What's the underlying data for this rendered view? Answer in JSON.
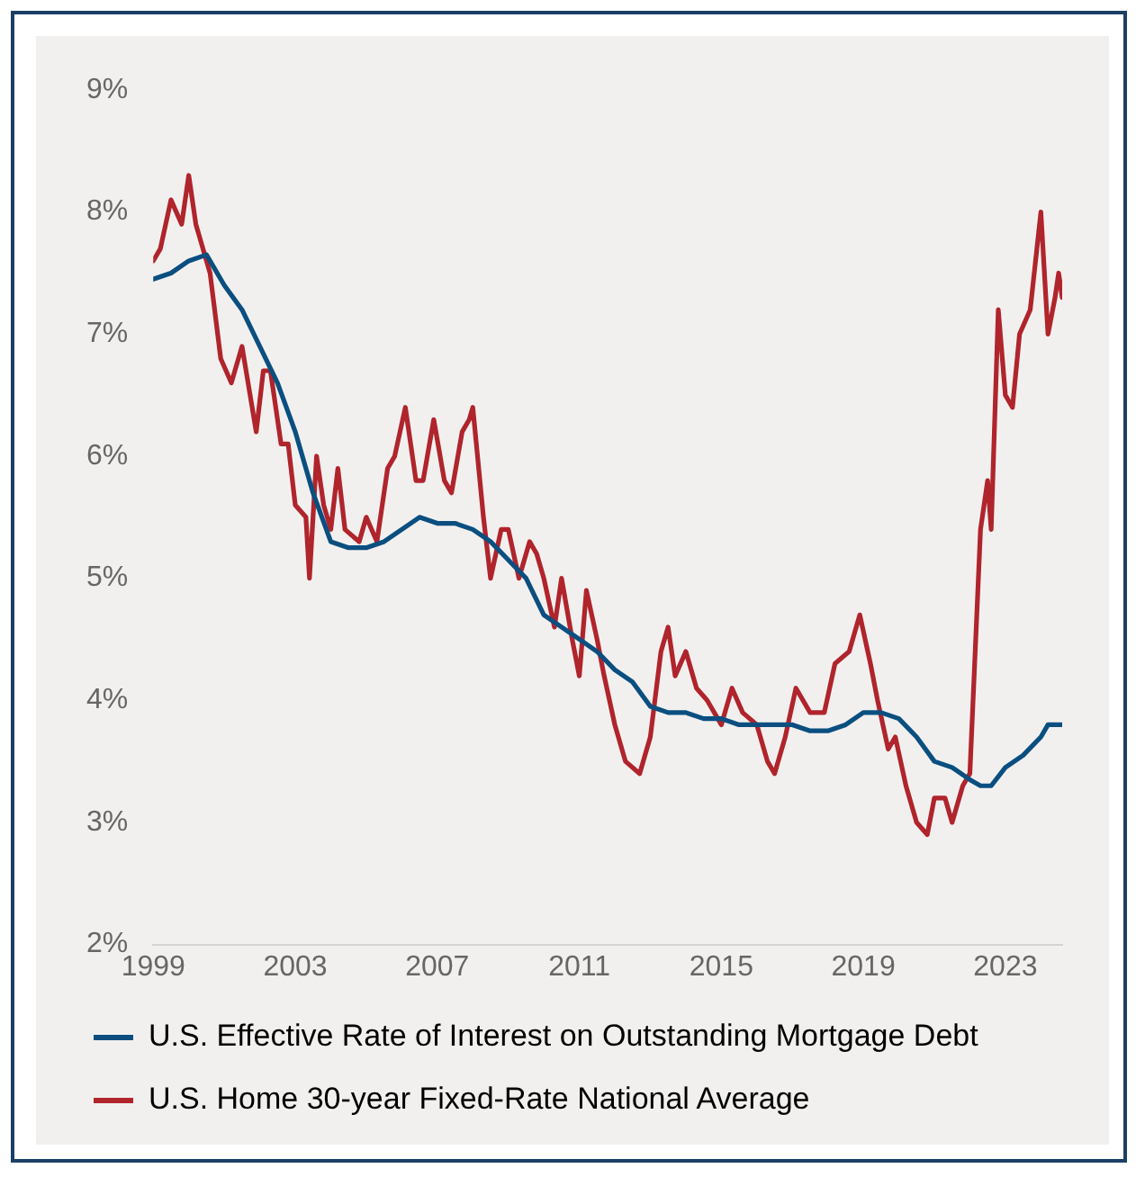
{
  "chart_data": {
    "type": "line",
    "xlim": [
      1999,
      2024.6
    ],
    "xticks": [
      1999,
      2003,
      2007,
      2011,
      2015,
      2019,
      2023
    ],
    "ylim": [
      2,
      9
    ],
    "yticks": [
      {
        "value": 2,
        "label": "2%"
      },
      {
        "value": 3,
        "label": "3%"
      },
      {
        "value": 4,
        "label": "4%"
      },
      {
        "value": 5,
        "label": "5%"
      },
      {
        "value": 6,
        "label": "6%"
      },
      {
        "value": 7,
        "label": "7%"
      },
      {
        "value": 8,
        "label": "8%"
      },
      {
        "value": 9,
        "label": "9%"
      }
    ],
    "grid": false,
    "legend": "bottom",
    "marker": "none",
    "line_style": "solid",
    "series": [
      {
        "name": "U.S. Effective Rate of Interest on Outstanding Mortgage Debt",
        "color": "#0a4f80",
        "x": [
          1999.0,
          1999.5,
          2000.0,
          2000.5,
          2001.0,
          2001.5,
          2002.0,
          2002.5,
          2003.0,
          2003.5,
          2004.0,
          2004.5,
          2005.0,
          2005.5,
          2006.0,
          2006.5,
          2007.0,
          2007.5,
          2008.0,
          2008.5,
          2009.0,
          2009.5,
          2010.0,
          2010.5,
          2011.0,
          2011.5,
          2012.0,
          2012.5,
          2013.0,
          2013.5,
          2014.0,
          2014.5,
          2015.0,
          2015.5,
          2016.0,
          2016.5,
          2017.0,
          2017.5,
          2018.0,
          2018.5,
          2019.0,
          2019.5,
          2020.0,
          2020.5,
          2021.0,
          2021.5,
          2022.0,
          2022.3,
          2022.6,
          2023.0,
          2023.5,
          2024.0,
          2024.2,
          2024.6
        ],
        "values": [
          7.45,
          7.5,
          7.6,
          7.65,
          7.4,
          7.2,
          6.9,
          6.6,
          6.2,
          5.7,
          5.3,
          5.25,
          5.25,
          5.3,
          5.4,
          5.5,
          5.45,
          5.45,
          5.4,
          5.3,
          5.15,
          5.0,
          4.7,
          4.6,
          4.5,
          4.4,
          4.25,
          4.15,
          3.95,
          3.9,
          3.9,
          3.85,
          3.85,
          3.8,
          3.8,
          3.8,
          3.8,
          3.75,
          3.75,
          3.8,
          3.9,
          3.9,
          3.85,
          3.7,
          3.5,
          3.45,
          3.35,
          3.3,
          3.3,
          3.45,
          3.55,
          3.7,
          3.8,
          3.8
        ]
      },
      {
        "name": "U.S. Home 30-year Fixed-Rate National Average",
        "color": "#b0242c",
        "x": [
          1999.0,
          1999.2,
          1999.5,
          1999.8,
          2000.0,
          2000.2,
          2000.6,
          2000.9,
          2001.2,
          2001.5,
          2001.9,
          2002.1,
          2002.3,
          2002.6,
          2002.8,
          2003.0,
          2003.3,
          2003.4,
          2003.6,
          2003.8,
          2004.0,
          2004.2,
          2004.4,
          2004.8,
          2005.0,
          2005.3,
          2005.6,
          2005.8,
          2006.1,
          2006.4,
          2006.6,
          2006.9,
          2007.2,
          2007.4,
          2007.7,
          2007.9,
          2008.0,
          2008.3,
          2008.5,
          2008.8,
          2009.0,
          2009.3,
          2009.6,
          2009.8,
          2010.0,
          2010.3,
          2010.5,
          2010.8,
          2011.0,
          2011.2,
          2011.5,
          2011.7,
          2012.0,
          2012.3,
          2012.7,
          2013.0,
          2013.3,
          2013.5,
          2013.7,
          2014.0,
          2014.3,
          2014.6,
          2015.0,
          2015.3,
          2015.6,
          2016.0,
          2016.3,
          2016.5,
          2016.8,
          2017.1,
          2017.5,
          2017.9,
          2018.2,
          2018.6,
          2018.9,
          2019.2,
          2019.4,
          2019.7,
          2019.9,
          2020.2,
          2020.5,
          2020.8,
          2021.0,
          2021.3,
          2021.5,
          2021.8,
          2022.0,
          2022.3,
          2022.5,
          2022.6,
          2022.8,
          2023.0,
          2023.2,
          2023.4,
          2023.7,
          2024.0,
          2024.2,
          2024.4,
          2024.5,
          2024.6
        ],
        "values": [
          7.6,
          7.7,
          8.1,
          7.9,
          8.3,
          7.9,
          7.5,
          6.8,
          6.6,
          6.9,
          6.2,
          6.7,
          6.7,
          6.1,
          6.1,
          5.6,
          5.5,
          5.0,
          6.0,
          5.6,
          5.4,
          5.9,
          5.4,
          5.3,
          5.5,
          5.3,
          5.9,
          6.0,
          6.4,
          5.8,
          5.8,
          6.3,
          5.8,
          5.7,
          6.2,
          6.3,
          6.4,
          5.5,
          5.0,
          5.4,
          5.4,
          5.0,
          5.3,
          5.2,
          5.0,
          4.6,
          5.0,
          4.5,
          4.2,
          4.9,
          4.5,
          4.2,
          3.8,
          3.5,
          3.4,
          3.7,
          4.4,
          4.6,
          4.2,
          4.4,
          4.1,
          4.0,
          3.8,
          4.1,
          3.9,
          3.8,
          3.5,
          3.4,
          3.7,
          4.1,
          3.9,
          3.9,
          4.3,
          4.4,
          4.7,
          4.3,
          4.0,
          3.6,
          3.7,
          3.3,
          3.0,
          2.9,
          3.2,
          3.2,
          3.0,
          3.3,
          3.4,
          5.4,
          5.8,
          5.4,
          7.2,
          6.5,
          6.4,
          7.0,
          7.2,
          8.0,
          7.0,
          7.3,
          7.5,
          7.3
        ]
      }
    ]
  }
}
